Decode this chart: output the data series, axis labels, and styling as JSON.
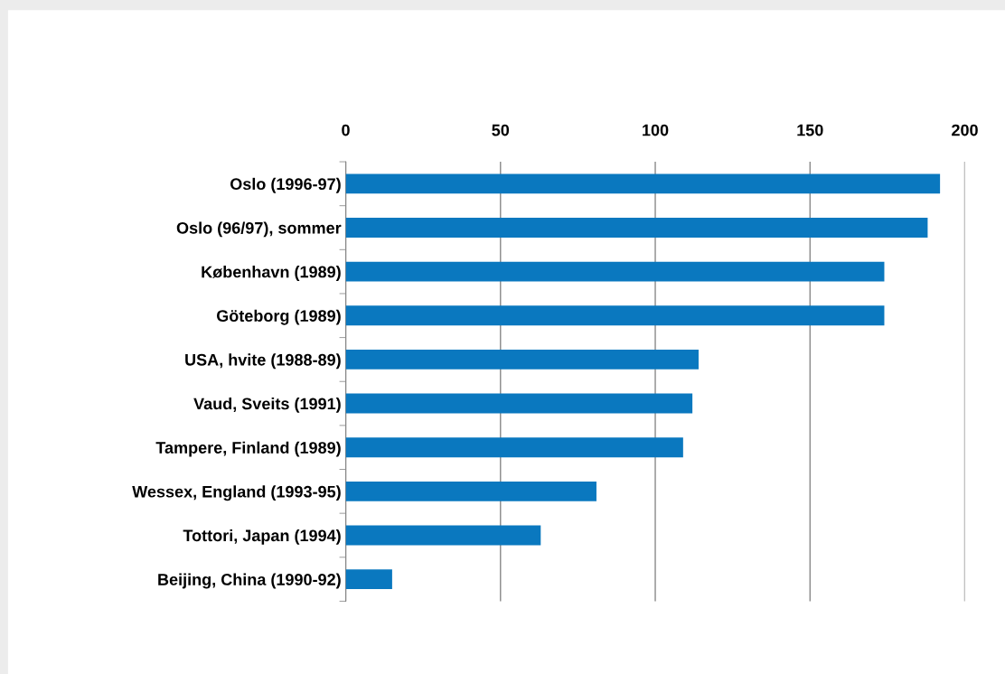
{
  "chart_data": {
    "type": "bar",
    "orientation": "horizontal",
    "categories": [
      "Oslo (1996-97)",
      "Oslo (96/97), sommer",
      "København (1989)",
      "Göteborg (1989)",
      "USA, hvite (1988-89)",
      "Vaud, Sveits (1991)",
      "Tampere, Finland (1989)",
      "Wessex, England (1993-95)",
      "Tottori, Japan (1994)",
      "Beijing, China (1990-92)"
    ],
    "values": [
      192,
      188,
      174,
      174,
      114,
      112,
      109,
      81,
      63,
      15
    ],
    "color": "#0a78bf",
    "xlim": [
      0,
      200
    ],
    "xticks": [
      0,
      50,
      100,
      150,
      200
    ],
    "grid": "x",
    "legend": false
  }
}
